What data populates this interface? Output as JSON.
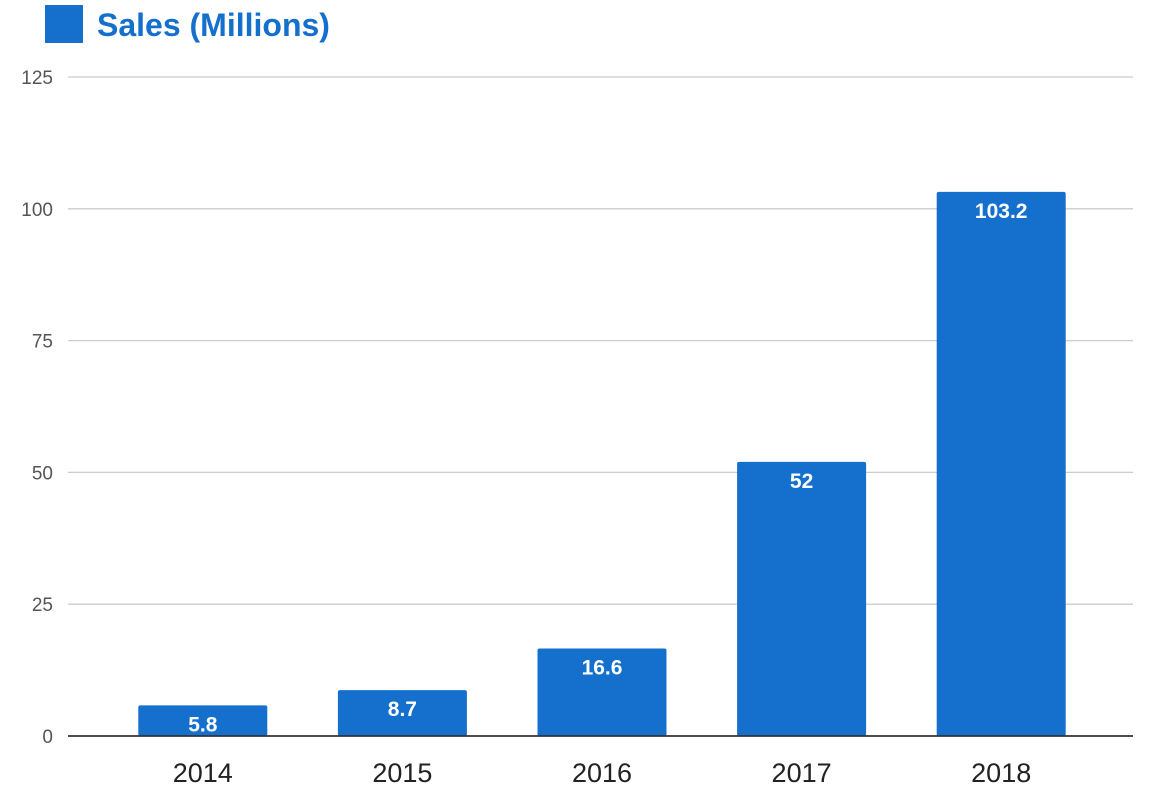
{
  "colors": {
    "bar": "#1470cc",
    "legend_text": "#1470cc",
    "grid": "#cccccc",
    "axis": "#333333",
    "data_label": "#ffffff"
  },
  "chart_data": {
    "type": "bar",
    "categories": [
      "2014",
      "2015",
      "2016",
      "2017",
      "2018"
    ],
    "series": [
      {
        "name": "Sales (Millions)",
        "values": [
          5.8,
          8.7,
          16.6,
          52,
          103.2
        ]
      }
    ],
    "data_labels": [
      "5.8",
      "8.7",
      "16.6",
      "52",
      "103.2"
    ],
    "yticks": [
      0,
      25,
      50,
      75,
      100,
      125
    ],
    "ylim": [
      0,
      125
    ],
    "grid": true,
    "legend": {
      "position": "top-left",
      "label": "Sales (Millions)"
    },
    "title": "",
    "xlabel": "",
    "ylabel": ""
  }
}
